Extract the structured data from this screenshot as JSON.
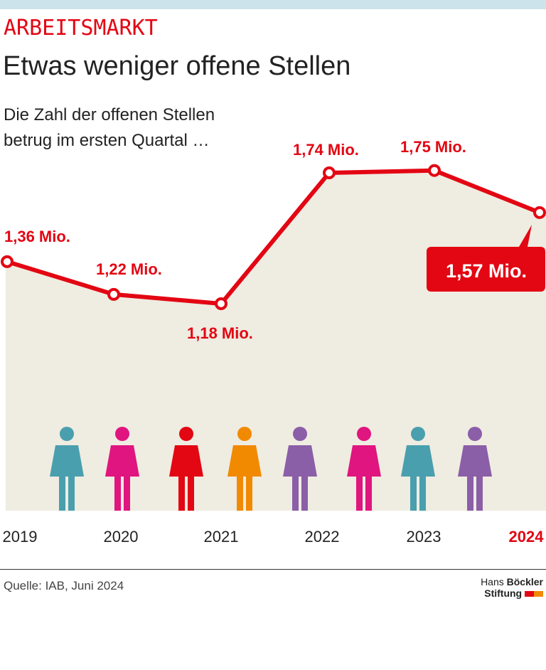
{
  "kicker": "ARBEITSMARKT",
  "title": "Etwas weniger offene Stellen",
  "subtitle_lines": [
    "Die Zahl der offenen Stellen",
    "betrug im ersten Quartal …"
  ],
  "source": "Quelle: IAB, Juni 2024",
  "logo": {
    "line1_a": "Hans",
    "line1_b": "Böckler",
    "line2": "Stiftung"
  },
  "colors": {
    "accent": "#e30613",
    "area": "#efece1",
    "highlight_label_bg": "#e30613"
  },
  "icons": [
    "worker-helmet-icon",
    "woman-waving-icon",
    "businessman-briefcase-icon",
    "call-center-headset-icon",
    "woman-icon",
    "chef-icon",
    "man-icon",
    "mechanic-wrench-icon"
  ],
  "chart_data": {
    "type": "line",
    "x": [
      "2019",
      "2020",
      "2021",
      "2022",
      "2023",
      "2024"
    ],
    "series": [
      {
        "values": [
          1.36,
          1.22,
          1.18,
          1.74,
          1.75,
          1.57
        ]
      }
    ],
    "data_labels": [
      "1,36 Mio.",
      "1,22 Mio.",
      "1,18 Mio.",
      "1,74 Mio.",
      "1,75 Mio.",
      "1,57 Mio."
    ],
    "unit": "Mio.",
    "highlight": "2024",
    "grid": false
  }
}
